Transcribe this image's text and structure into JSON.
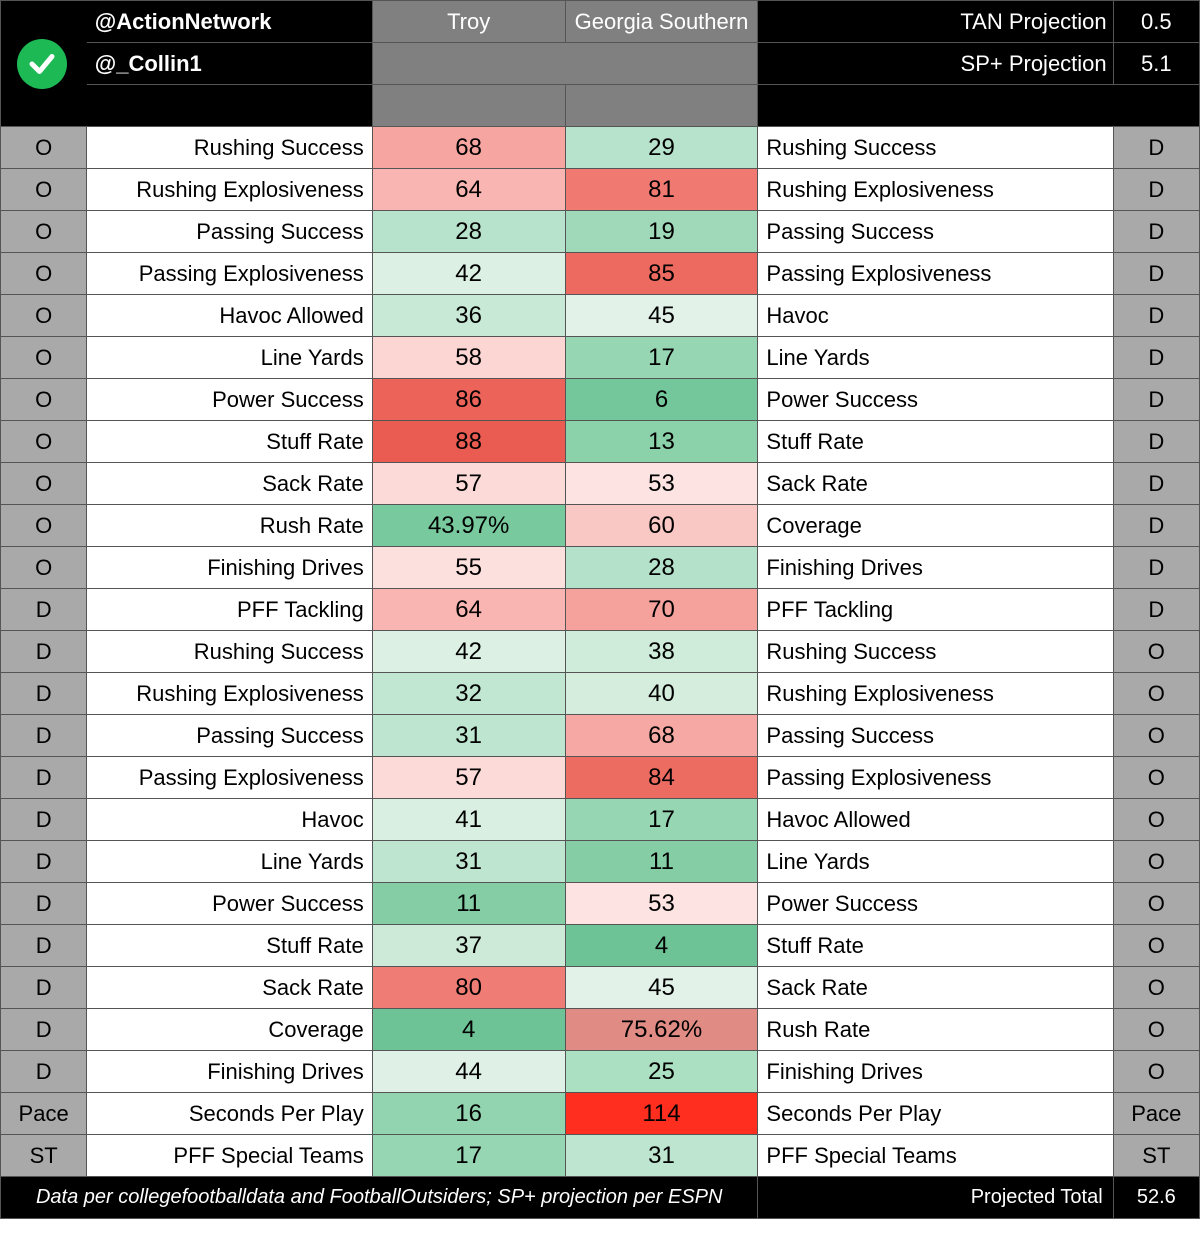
{
  "header": {
    "handle1": "@ActionNetwork",
    "handle2": "@_Collin1",
    "team1": "Troy",
    "team2": "Georgia Southern",
    "proj1_label": "TAN Projection",
    "proj1_value": "0.5",
    "proj2_label": "SP+ Projection",
    "proj2_value": "5.1"
  },
  "colors": {
    "black": "#000000",
    "white": "#ffffff",
    "side_gray": "#a9a9a9",
    "hdr_gray": "#808080",
    "check_green": "#1db954"
  },
  "color_scale_note": "cell background hex chosen per value on green(low)->red(high) ranking scale",
  "rows": [
    {
      "l_side": "O",
      "l_label": "Rushing Success",
      "v1": "68",
      "c1": "#f6a5a1",
      "v2": "29",
      "c2": "#b7e2cb",
      "r_label": "Rushing Success",
      "r_side": "D"
    },
    {
      "l_side": "O",
      "l_label": "Rushing Explosiveness",
      "v1": "64",
      "c1": "#f8b5b1",
      "v2": "81",
      "c2": "#f07a72",
      "r_label": "Rushing Explosiveness",
      "r_side": "D"
    },
    {
      "l_side": "O",
      "l_label": "Passing Success",
      "v1": "28",
      "c1": "#b7e2cb",
      "v2": "19",
      "c2": "#9fd9b9",
      "r_label": "Passing Success",
      "r_side": "D"
    },
    {
      "l_side": "O",
      "l_label": "Passing Explosiveness",
      "v1": "42",
      "c1": "#dcf0e4",
      "v2": "85",
      "c2": "#ed6a60",
      "r_label": "Passing Explosiveness",
      "r_side": "D"
    },
    {
      "l_side": "O",
      "l_label": "Havoc Allowed",
      "v1": "36",
      "c1": "#c8e9d6",
      "v2": "45",
      "c2": "#e2f2e8",
      "r_label": "Havoc",
      "r_side": "D"
    },
    {
      "l_side": "O",
      "l_label": "Line Yards",
      "v1": "58",
      "c1": "#fbd6d3",
      "v2": "17",
      "c2": "#97d6b3",
      "r_label": "Line Yards",
      "r_side": "D"
    },
    {
      "l_side": "O",
      "l_label": "Power Success",
      "v1": "86",
      "c1": "#eb6359",
      "v2": "6",
      "c2": "#74c79a",
      "r_label": "Power Success",
      "r_side": "D"
    },
    {
      "l_side": "O",
      "l_label": "Stuff Rate",
      "v1": "88",
      "c1": "#ea5c52",
      "v2": "13",
      "c2": "#8bd1aa",
      "r_label": "Stuff Rate",
      "r_side": "D"
    },
    {
      "l_side": "O",
      "l_label": "Sack Rate",
      "v1": "57",
      "c1": "#fbdad7",
      "v2": "53",
      "c2": "#fde4e2",
      "r_label": "Sack Rate",
      "r_side": "D"
    },
    {
      "l_side": "O",
      "l_label": "Rush Rate",
      "v1": "43.97%",
      "c1": "#78c99d",
      "v2": "60",
      "c2": "#fac8c4",
      "r_label": "Coverage",
      "r_side": "D"
    },
    {
      "l_side": "O",
      "l_label": "Finishing Drives",
      "v1": "55",
      "c1": "#fce0de",
      "v2": "28",
      "c2": "#b4e1c9",
      "r_label": "Finishing Drives",
      "r_side": "D"
    },
    {
      "l_side": "D",
      "l_label": "PFF Tackling",
      "v1": "64",
      "c1": "#f8b5b1",
      "v2": "70",
      "c2": "#f5a29d",
      "r_label": "PFF Tackling",
      "r_side": "D"
    },
    {
      "l_side": "D",
      "l_label": "Rushing Success",
      "v1": "42",
      "c1": "#dcf0e4",
      "v2": "38",
      "c2": "#cfebd9",
      "r_label": "Rushing Success",
      "r_side": "O"
    },
    {
      "l_side": "D",
      "l_label": "Rushing Explosiveness",
      "v1": "32",
      "c1": "#c1e6d1",
      "v2": "40",
      "c2": "#d5eddd",
      "r_label": "Rushing Explosiveness",
      "r_side": "O"
    },
    {
      "l_side": "D",
      "l_label": "Passing Success",
      "v1": "31",
      "c1": "#bee5cf",
      "v2": "68",
      "c2": "#f6a9a4",
      "r_label": "Passing Success",
      "r_side": "O"
    },
    {
      "l_side": "D",
      "l_label": "Passing Explosiveness",
      "v1": "57",
      "c1": "#fbdad7",
      "v2": "84",
      "c2": "#ed6c62",
      "r_label": "Passing Explosiveness",
      "r_side": "O"
    },
    {
      "l_side": "D",
      "l_label": "Havoc",
      "v1": "41",
      "c1": "#d9efe1",
      "v2": "17",
      "c2": "#97d6b3",
      "r_label": "Havoc Allowed",
      "r_side": "O"
    },
    {
      "l_side": "D",
      "l_label": "Line Yards",
      "v1": "31",
      "c1": "#bee5cf",
      "v2": "11",
      "c2": "#85cea5",
      "r_label": "Line Yards",
      "r_side": "O"
    },
    {
      "l_side": "D",
      "l_label": "Power Success",
      "v1": "11",
      "c1": "#85cea5",
      "v2": "53",
      "c2": "#fde4e2",
      "r_label": "Power Success",
      "r_side": "O"
    },
    {
      "l_side": "D",
      "l_label": "Stuff Rate",
      "v1": "37",
      "c1": "#ccead7",
      "v2": "4",
      "c2": "#6ec396",
      "r_label": "Stuff Rate",
      "r_side": "O"
    },
    {
      "l_side": "D",
      "l_label": "Sack Rate",
      "v1": "80",
      "c1": "#f07d75",
      "v2": "45",
      "c2": "#e2f2e8",
      "r_label": "Sack Rate",
      "r_side": "O"
    },
    {
      "l_side": "D",
      "l_label": "Coverage",
      "v1": "4",
      "c1": "#6ec396",
      "v2": "75.62%",
      "c2": "#e08b84",
      "r_label": "Rush Rate",
      "r_side": "O"
    },
    {
      "l_side": "D",
      "l_label": "Finishing Drives",
      "v1": "44",
      "c1": "#dff1e6",
      "v2": "25",
      "c2": "#ace0c3",
      "r_label": "Finishing Drives",
      "r_side": "O"
    },
    {
      "l_side": "Pace",
      "l_label": "Seconds Per Play",
      "v1": "16",
      "c1": "#93d4b0",
      "v2": "114",
      "c2": "#ff2e1f",
      "r_label": "Seconds Per Play",
      "r_side": "Pace"
    },
    {
      "l_side": "ST",
      "l_label": "PFF Special Teams",
      "v1": "17",
      "c1": "#97d6b3",
      "v2": "31",
      "c2": "#bee5cf",
      "r_label": "PFF Special Teams",
      "r_side": "ST"
    }
  ],
  "footer": {
    "source": "Data per collegefootballdata and FootballOutsiders; SP+ projection per ESPN",
    "total_label": "Projected Total",
    "total_value": "52.6"
  }
}
